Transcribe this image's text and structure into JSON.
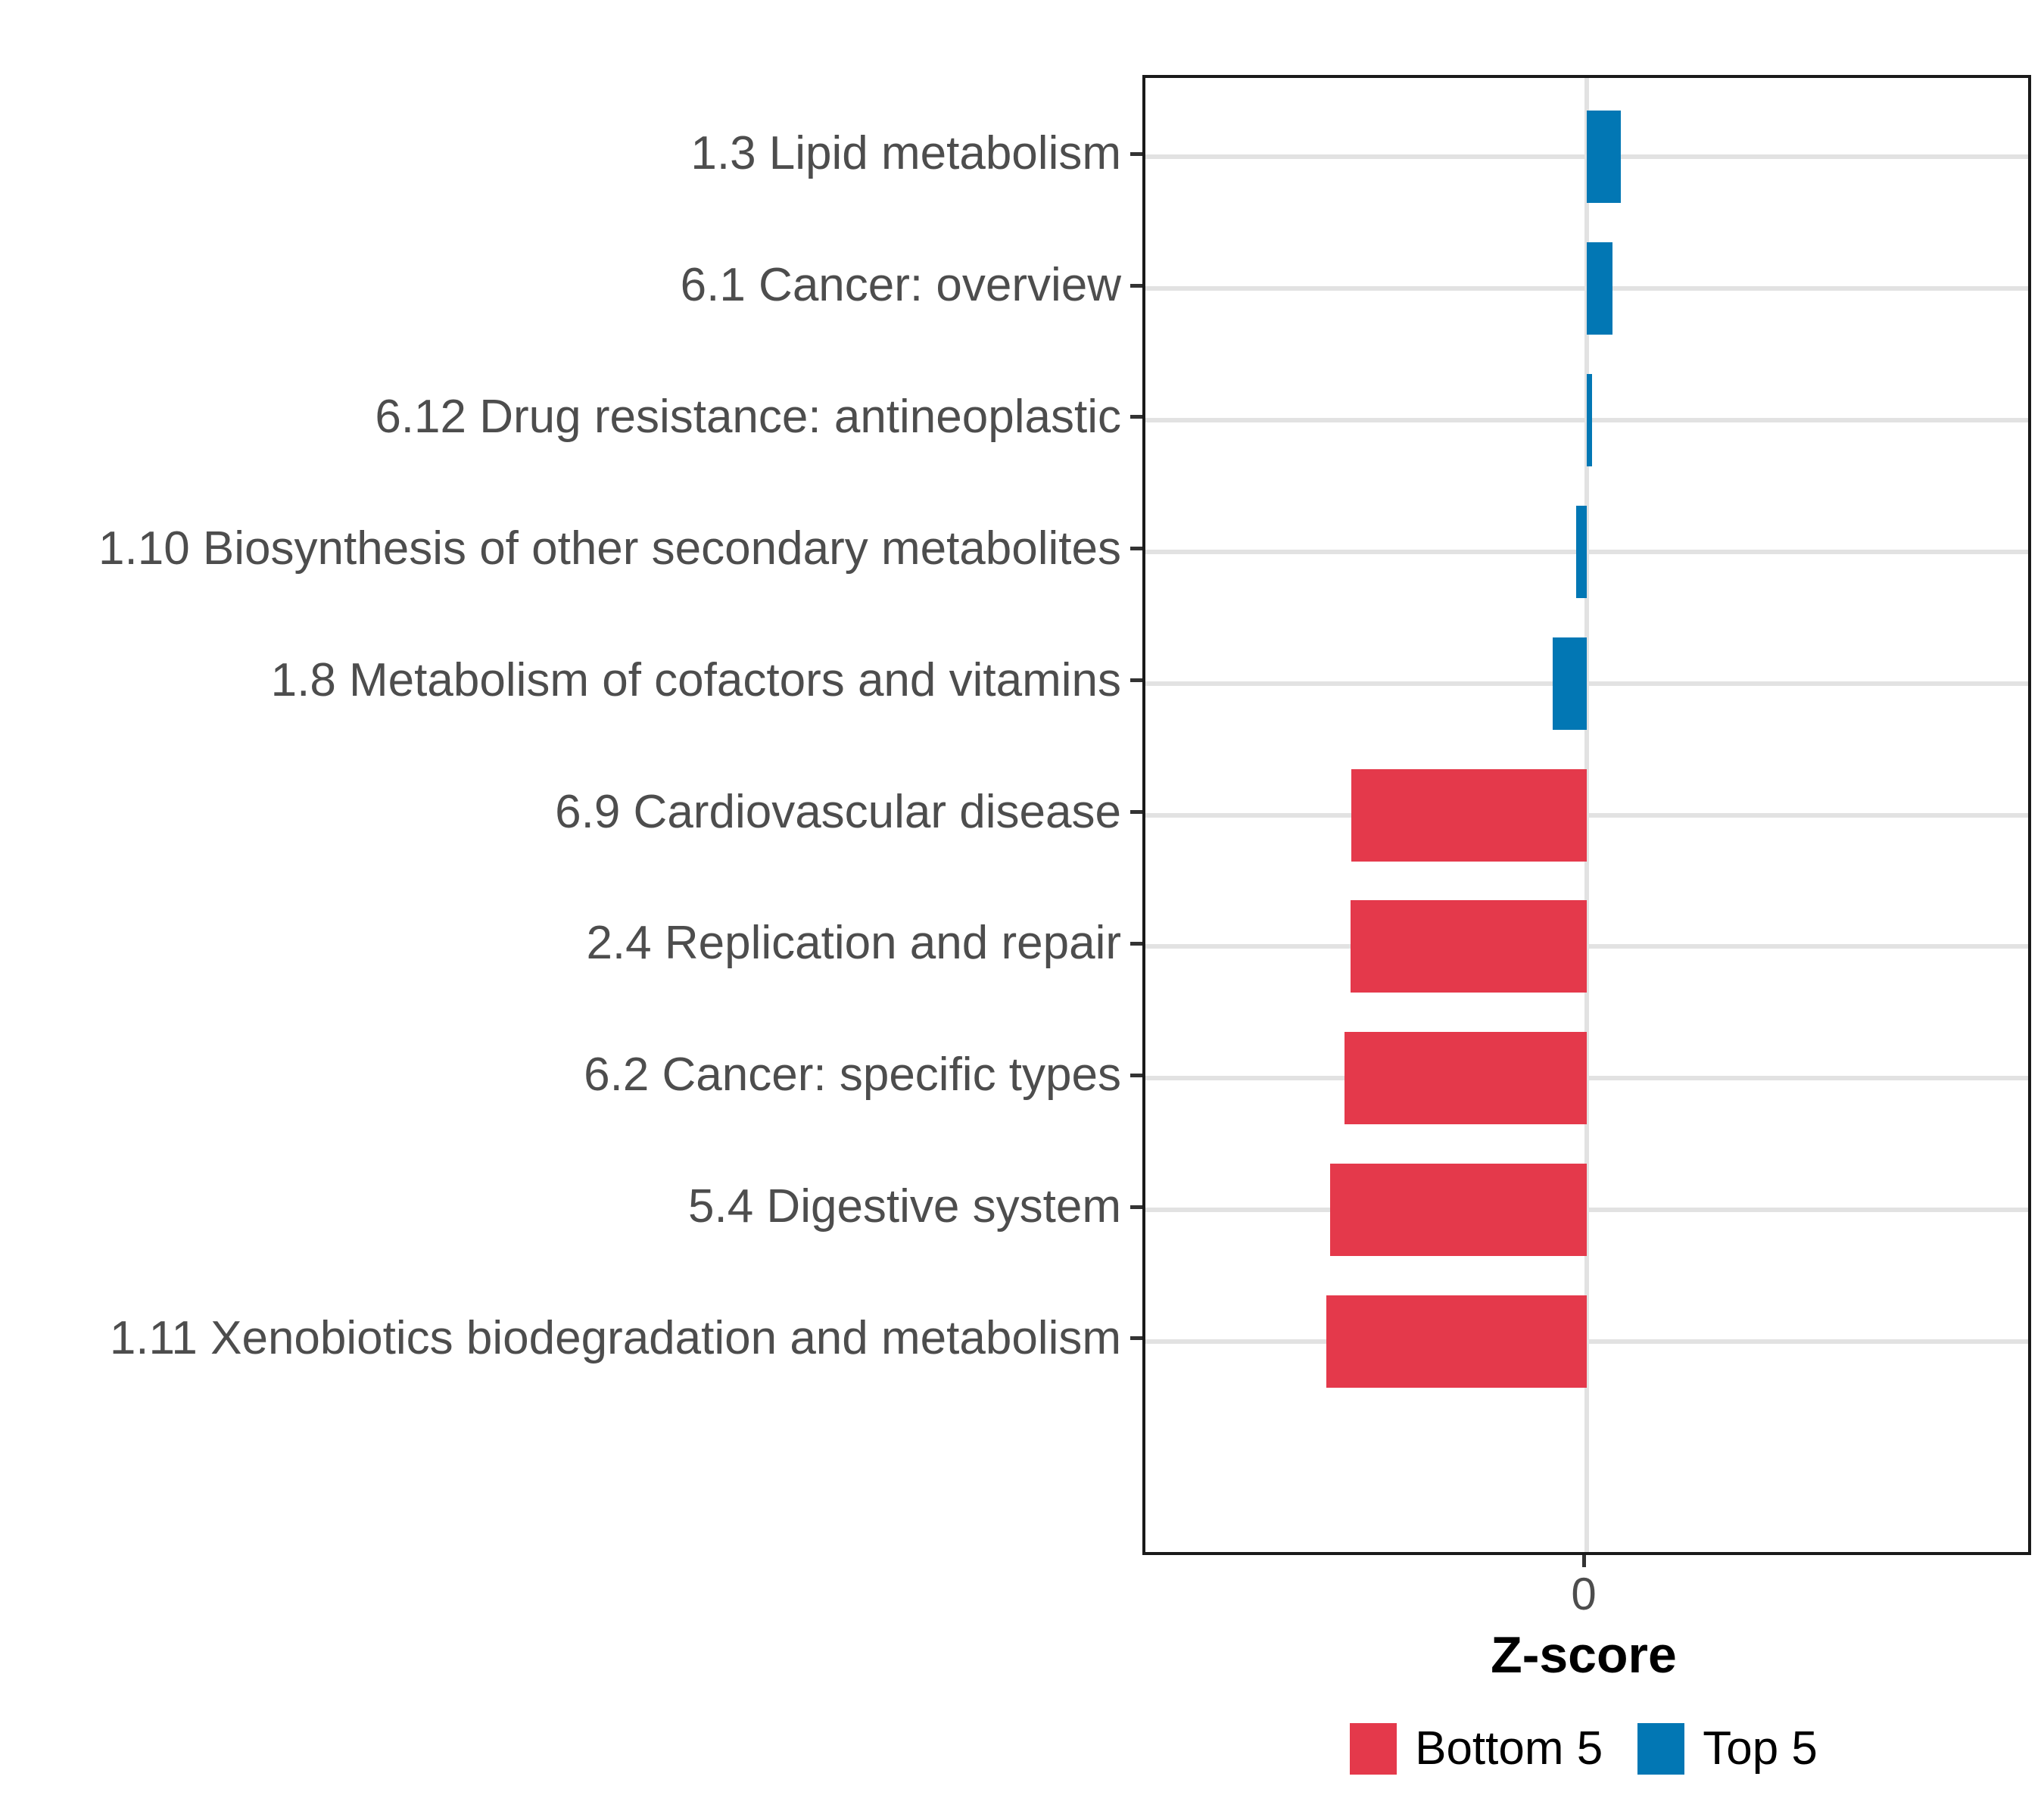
{
  "chart_data": {
    "type": "bar",
    "orientation": "horizontal",
    "title": "",
    "xlabel": "Z-score",
    "ylabel": "",
    "grid": "major",
    "x_axis": {
      "tick_values": [
        0
      ],
      "tick_labels": [
        "0"
      ],
      "range": [
        -0.65,
        0.65
      ]
    },
    "categories": [
      "1.3 Lipid metabolism",
      "6.1 Cancer: overview",
      "6.12 Drug resistance: antineoplastic",
      "1.10 Biosynthesis of other secondary metabolites",
      "1.8 Metabolism of cofactors and vitamins",
      "6.9 Cardiovascular disease",
      "2.4 Replication and repair",
      "6.2 Cancer: specific types",
      "5.4 Digestive system",
      "1.11 Xenobiotics biodegradation and metabolism"
    ],
    "values": [
      0.05,
      0.038,
      0.008,
      -0.016,
      -0.05,
      -0.347,
      -0.348,
      -0.357,
      -0.378,
      -0.384
    ],
    "groups": [
      "Top 5",
      "Top 5",
      "Top 5",
      "Top 5",
      "Top 5",
      "Bottom 5",
      "Bottom 5",
      "Bottom 5",
      "Bottom 5",
      "Bottom 5"
    ],
    "colors": {
      "Bottom 5": "#E4394B",
      "Top 5": "#0277B4"
    },
    "legend": {
      "position": "bottom",
      "entries": [
        {
          "label": "Bottom 5",
          "color": "#E4394B"
        },
        {
          "label": "Top 5",
          "color": "#0277B4"
        }
      ]
    },
    "style": {
      "panel_border_color": "#1A1A1A",
      "gridline_color": "#E2E2E2",
      "tick_color": "#333333",
      "axis_text_color": "#4D4D4D",
      "title_text_color": "#000000",
      "background": "#FFFFFF"
    }
  }
}
